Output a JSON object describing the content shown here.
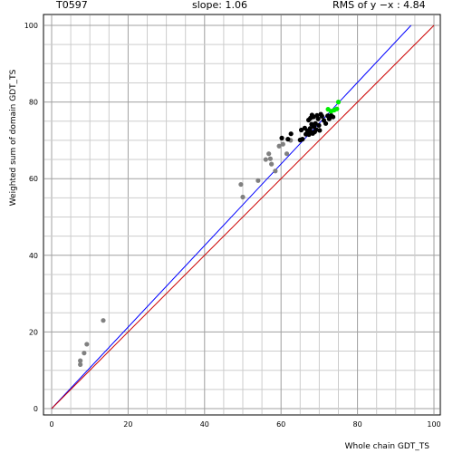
{
  "header": {
    "target": "T0597",
    "slope": "slope: 1.06",
    "rms": "RMS of  y −x : 4.84"
  },
  "chart_data": {
    "type": "scatter",
    "xlabel": "Whole chain GDT_TS",
    "ylabel": "Weighted sum of domain GDT_TS",
    "xlim": [
      0,
      100
    ],
    "ylim": [
      0,
      100
    ],
    "xticks": [
      0,
      20,
      40,
      60,
      80,
      100
    ],
    "yticks": [
      0,
      20,
      40,
      60,
      80,
      100
    ],
    "grid": true,
    "lines": [
      {
        "kind": "fit",
        "color": "#0000ff",
        "x": [
          0,
          94
        ],
        "y": [
          0,
          100
        ]
      },
      {
        "kind": "identity",
        "color": "#cc0000",
        "x": [
          0,
          100
        ],
        "y": [
          0,
          100
        ]
      }
    ],
    "series": [
      {
        "color": "#808080",
        "x": [
          7.5,
          7.5,
          8.5,
          9.2,
          13.5,
          49.5,
          50,
          54,
          56,
          56.8,
          57.2,
          57.5,
          58.5,
          59.5,
          60.5,
          61.5,
          62.5
        ],
        "y": [
          11.5,
          12.5,
          14.5,
          16.8,
          23,
          58.5,
          55.2,
          59.5,
          65,
          66.5,
          65.2,
          63.8,
          62,
          68.5,
          69,
          66.5,
          70
        ]
      },
      {
        "color": "#000000",
        "x": [
          60.2,
          61.8,
          62.6,
          65,
          65.3,
          65.6,
          66.2,
          66.5,
          66.9,
          67.2,
          67.3,
          67.6,
          67.7,
          67.9,
          68,
          68.1,
          68.3,
          68.5,
          68.6,
          68.8,
          69,
          69.2,
          69.4,
          69.7,
          69.9,
          70.1,
          70.4,
          70.7,
          71.2,
          71.7,
          72.2,
          72.6,
          73.1,
          73.6
        ],
        "y": [
          70.6,
          70.3,
          71.7,
          70.1,
          72.7,
          70.3,
          73.2,
          71.6,
          72.5,
          75.3,
          71.5,
          73.1,
          75.8,
          72.1,
          74.2,
          76.6,
          71.8,
          76.1,
          73.6,
          72.2,
          74.4,
          72.8,
          76.5,
          75.6,
          73.9,
          72.6,
          76.8,
          76.3,
          75.2,
          74.4,
          76.4,
          75.6,
          76.5,
          76.1
        ]
      },
      {
        "color": "#00ee00",
        "x": [
          72.3,
          73.1,
          73.9,
          74.6,
          75
        ],
        "y": [
          78.1,
          77.6,
          77.9,
          78.2,
          80
        ]
      }
    ]
  }
}
